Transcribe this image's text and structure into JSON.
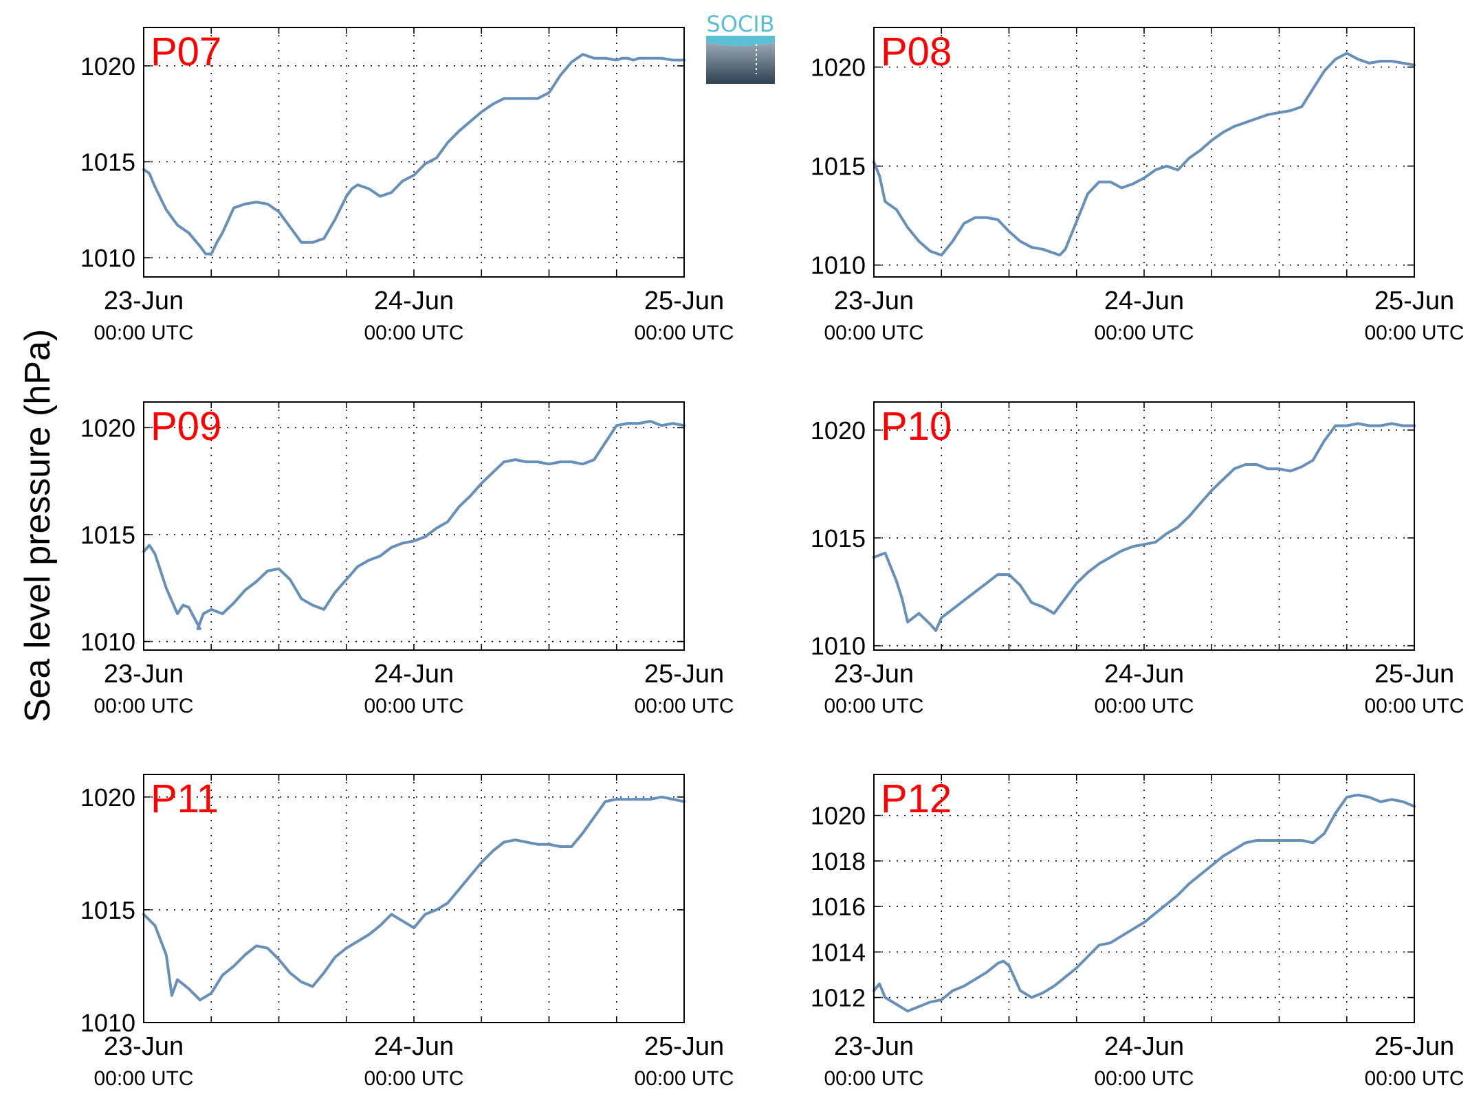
{
  "figure": {
    "ylabel": "Sea level pressure (hPa)",
    "logo_text": "SOCIB",
    "colors": {
      "line": "#6690b8",
      "panel_label": "#ff0000",
      "axis": "#000000",
      "grid": "#000000",
      "logo_top": "#5bbfd4",
      "logo_bottom": "#2e4252"
    }
  },
  "chart_data": [
    {
      "type": "line",
      "title": "P07",
      "xlabel": "",
      "ylabel": "",
      "x_ticks": [
        {
          "date": "23-Jun",
          "time": "00:00 UTC"
        },
        {
          "date": "24-Jun",
          "time": "00:00 UTC"
        },
        {
          "date": "25-Jun",
          "time": "00:00 UTC"
        }
      ],
      "x_range_hours": [
        0,
        48
      ],
      "ylim": [
        1009,
        1022
      ],
      "yticks": [
        1010,
        1015,
        1020
      ],
      "grid": true,
      "series": [
        {
          "x_hours": [
            0,
            0.5,
            1,
            2,
            3,
            4,
            5,
            5.5,
            6,
            6.5,
            7,
            8,
            9,
            10,
            11,
            12,
            13,
            14,
            15,
            16,
            17,
            18,
            18.5,
            19,
            20,
            21,
            22,
            23,
            24,
            25,
            26,
            27,
            28,
            29,
            30,
            31,
            32,
            33,
            34,
            35,
            36,
            37,
            38,
            39,
            40,
            41,
            42,
            42.5,
            43,
            43.5,
            44,
            45,
            46,
            47,
            48
          ],
          "values": [
            1014.6,
            1014.4,
            1013.7,
            1012.5,
            1011.7,
            1011.3,
            1010.6,
            1010.2,
            1010.2,
            1010.8,
            1011.3,
            1012.6,
            1012.8,
            1012.9,
            1012.8,
            1012.4,
            1011.6,
            1010.8,
            1010.8,
            1011.0,
            1012.0,
            1013.2,
            1013.6,
            1013.8,
            1013.6,
            1013.2,
            1013.4,
            1014.0,
            1014.3,
            1014.9,
            1015.2,
            1016.0,
            1016.6,
            1017.1,
            1017.6,
            1018.0,
            1018.3,
            1018.3,
            1018.3,
            1018.3,
            1018.6,
            1019.5,
            1020.2,
            1020.6,
            1020.4,
            1020.4,
            1020.3,
            1020.4,
            1020.4,
            1020.3,
            1020.4,
            1020.4,
            1020.4,
            1020.3,
            1020.3
          ]
        }
      ]
    },
    {
      "type": "line",
      "title": "P08",
      "xlabel": "",
      "ylabel": "",
      "x_ticks": [
        {
          "date": "23-Jun",
          "time": "00:00 UTC"
        },
        {
          "date": "24-Jun",
          "time": "00:00 UTC"
        },
        {
          "date": "25-Jun",
          "time": "00:00 UTC"
        }
      ],
      "x_range_hours": [
        0,
        48
      ],
      "ylim": [
        1009.4,
        1022
      ],
      "yticks": [
        1010,
        1015,
        1020
      ],
      "grid": true,
      "series": [
        {
          "x_hours": [
            0,
            0.5,
            1,
            2,
            3,
            4,
            5,
            6,
            7,
            8,
            9,
            10,
            11,
            12,
            13,
            14,
            15,
            16,
            16.5,
            17,
            18,
            19,
            20,
            21,
            22,
            23,
            24,
            25,
            26,
            27,
            28,
            29,
            30,
            31,
            32,
            33,
            34,
            35,
            36,
            37,
            38,
            39,
            40,
            41,
            42,
            43,
            44,
            45,
            46,
            47,
            48
          ],
          "values": [
            1015.2,
            1014.5,
            1013.2,
            1012.8,
            1011.9,
            1011.2,
            1010.7,
            1010.5,
            1011.2,
            1012.1,
            1012.4,
            1012.4,
            1012.3,
            1011.7,
            1011.2,
            1010.9,
            1010.8,
            1010.6,
            1010.5,
            1010.8,
            1012.2,
            1013.6,
            1014.2,
            1014.2,
            1013.9,
            1014.1,
            1014.4,
            1014.8,
            1015.0,
            1014.8,
            1015.4,
            1015.8,
            1016.3,
            1016.7,
            1017.0,
            1017.2,
            1017.4,
            1017.6,
            1017.7,
            1017.8,
            1018.0,
            1018.9,
            1019.8,
            1020.4,
            1020.7,
            1020.4,
            1020.2,
            1020.3,
            1020.3,
            1020.2,
            1020.1
          ]
        }
      ]
    },
    {
      "type": "line",
      "title": "P09",
      "xlabel": "",
      "ylabel": "",
      "x_ticks": [
        {
          "date": "23-Jun",
          "time": "00:00 UTC"
        },
        {
          "date": "24-Jun",
          "time": "00:00 UTC"
        },
        {
          "date": "25-Jun",
          "time": "00:00 UTC"
        }
      ],
      "x_range_hours": [
        0,
        48
      ],
      "ylim": [
        1009.6,
        1021.2
      ],
      "yticks": [
        1010,
        1015,
        1020
      ],
      "grid": true,
      "series": [
        {
          "x_hours": [
            0,
            0.5,
            1,
            2,
            3,
            3.5,
            4,
            5,
            4.8,
            5.3,
            6,
            7,
            8,
            9,
            10,
            11,
            12,
            13,
            14,
            15,
            16,
            17,
            18,
            19,
            20,
            21,
            22,
            23,
            24,
            25,
            26,
            27,
            28,
            29,
            30,
            31,
            32,
            33,
            34,
            35,
            36,
            37,
            38,
            39,
            40,
            41,
            42,
            43,
            44,
            45,
            46,
            47,
            48
          ],
          "values": [
            1014.2,
            1014.5,
            1014.1,
            1012.5,
            1011.3,
            1011.7,
            1011.6,
            1010.6,
            1010.6,
            1011.3,
            1011.5,
            1011.3,
            1011.8,
            1012.4,
            1012.8,
            1013.3,
            1013.4,
            1012.9,
            1012.0,
            1011.7,
            1011.5,
            1012.3,
            1012.9,
            1013.5,
            1013.8,
            1014.0,
            1014.4,
            1014.6,
            1014.7,
            1014.9,
            1015.3,
            1015.6,
            1016.3,
            1016.8,
            1017.4,
            1017.9,
            1018.4,
            1018.5,
            1018.4,
            1018.4,
            1018.3,
            1018.4,
            1018.4,
            1018.3,
            1018.5,
            1019.3,
            1020.1,
            1020.2,
            1020.2,
            1020.3,
            1020.1,
            1020.2,
            1020.1
          ]
        }
      ]
    },
    {
      "type": "line",
      "title": "P10",
      "xlabel": "",
      "ylabel": "",
      "x_ticks": [
        {
          "date": "23-Jun",
          "time": "00:00 UTC"
        },
        {
          "date": "24-Jun",
          "time": "00:00 UTC"
        },
        {
          "date": "25-Jun",
          "time": "00:00 UTC"
        }
      ],
      "x_range_hours": [
        0,
        48
      ],
      "ylim": [
        1009.8,
        1021.3
      ],
      "yticks": [
        1010,
        1015,
        1020
      ],
      "grid": true,
      "series": [
        {
          "x_hours": [
            0,
            1,
            2,
            2.5,
            3,
            4,
            5,
            5.5,
            6,
            7,
            8,
            9,
            10,
            11,
            12,
            13,
            14,
            15,
            16,
            17,
            18,
            19,
            20,
            21,
            22,
            23,
            24,
            25,
            26,
            27,
            28,
            29,
            30,
            31,
            32,
            33,
            34,
            35,
            36,
            37,
            38,
            39,
            40,
            41,
            42,
            43,
            44,
            45,
            46,
            47,
            48
          ],
          "values": [
            1014.1,
            1014.3,
            1013.0,
            1012.2,
            1011.1,
            1011.5,
            1011.0,
            1010.7,
            1011.3,
            1011.7,
            1012.1,
            1012.5,
            1012.9,
            1013.3,
            1013.3,
            1012.8,
            1012.0,
            1011.8,
            1011.5,
            1012.2,
            1012.9,
            1013.4,
            1013.8,
            1014.1,
            1014.4,
            1014.6,
            1014.7,
            1014.8,
            1015.2,
            1015.5,
            1016.0,
            1016.6,
            1017.2,
            1017.7,
            1018.2,
            1018.4,
            1018.4,
            1018.2,
            1018.2,
            1018.1,
            1018.3,
            1018.6,
            1019.5,
            1020.2,
            1020.2,
            1020.3,
            1020.2,
            1020.2,
            1020.3,
            1020.2,
            1020.2
          ]
        }
      ]
    },
    {
      "type": "line",
      "title": "P11",
      "xlabel": "",
      "ylabel": "",
      "x_ticks": [
        {
          "date": "23-Jun",
          "time": "00:00 UTC"
        },
        {
          "date": "24-Jun",
          "time": "00:00 UTC"
        },
        {
          "date": "25-Jun",
          "time": "00:00 UTC"
        }
      ],
      "x_range_hours": [
        0,
        48
      ],
      "ylim": [
        1010,
        1021
      ],
      "yticks": [
        1010,
        1015,
        1020
      ],
      "grid": true,
      "series": [
        {
          "x_hours": [
            0,
            1,
            2,
            2.5,
            3,
            4,
            5,
            6,
            6.5,
            7,
            8,
            9,
            10,
            11,
            12,
            13,
            14,
            15,
            16,
            17,
            18,
            19,
            20,
            21,
            22,
            23,
            24,
            25,
            26,
            27,
            28,
            29,
            30,
            31,
            32,
            33,
            34,
            35,
            36,
            37,
            38,
            39,
            40,
            41,
            42,
            43,
            44,
            45,
            46,
            47,
            48
          ],
          "values": [
            1014.8,
            1014.3,
            1013.0,
            1011.2,
            1011.9,
            1011.5,
            1011.0,
            1011.3,
            1011.7,
            1012.1,
            1012.5,
            1013.0,
            1013.4,
            1013.3,
            1012.8,
            1012.2,
            1011.8,
            1011.6,
            1012.2,
            1012.9,
            1013.3,
            1013.6,
            1013.9,
            1014.3,
            1014.8,
            1014.5,
            1014.2,
            1014.8,
            1015.0,
            1015.3,
            1015.9,
            1016.5,
            1017.1,
            1017.6,
            1018.0,
            1018.1,
            1018.0,
            1017.9,
            1017.9,
            1017.8,
            1017.8,
            1018.4,
            1019.1,
            1019.8,
            1019.9,
            1019.9,
            1019.9,
            1019.9,
            1020.0,
            1019.9,
            1019.8
          ]
        }
      ]
    },
    {
      "type": "line",
      "title": "P12",
      "xlabel": "",
      "ylabel": "",
      "x_ticks": [
        {
          "date": "23-Jun",
          "time": "00:00 UTC"
        },
        {
          "date": "24-Jun",
          "time": "00:00 UTC"
        },
        {
          "date": "25-Jun",
          "time": "00:00 UTC"
        }
      ],
      "x_range_hours": [
        0,
        48
      ],
      "ylim": [
        1010.9,
        1021.8
      ],
      "yticks": [
        1012,
        1014,
        1016,
        1018,
        1020
      ],
      "grid": true,
      "series": [
        {
          "x_hours": [
            0,
            0.5,
            1,
            2,
            3,
            4,
            5,
            6,
            7,
            8,
            9,
            10,
            11,
            11.5,
            12,
            13,
            14,
            15,
            16,
            17,
            18,
            19,
            20,
            21,
            22,
            23,
            24,
            25,
            26,
            27,
            28,
            29,
            30,
            31,
            32,
            33,
            34,
            35,
            36,
            37,
            38,
            39,
            40,
            41,
            42,
            43,
            44,
            45,
            46,
            47,
            48
          ],
          "values": [
            1012.3,
            1012.6,
            1012.0,
            1011.7,
            1011.4,
            1011.6,
            1011.8,
            1011.9,
            1012.3,
            1012.5,
            1012.8,
            1013.1,
            1013.5,
            1013.6,
            1013.4,
            1012.3,
            1012.0,
            1012.2,
            1012.5,
            1012.9,
            1013.3,
            1013.8,
            1014.3,
            1014.4,
            1014.7,
            1015.0,
            1015.3,
            1015.7,
            1016.1,
            1016.5,
            1017.0,
            1017.4,
            1017.8,
            1018.2,
            1018.5,
            1018.8,
            1018.9,
            1018.9,
            1018.9,
            1018.9,
            1018.9,
            1018.8,
            1019.2,
            1020.1,
            1020.8,
            1020.9,
            1020.8,
            1020.6,
            1020.7,
            1020.6,
            1020.4
          ]
        }
      ]
    }
  ]
}
